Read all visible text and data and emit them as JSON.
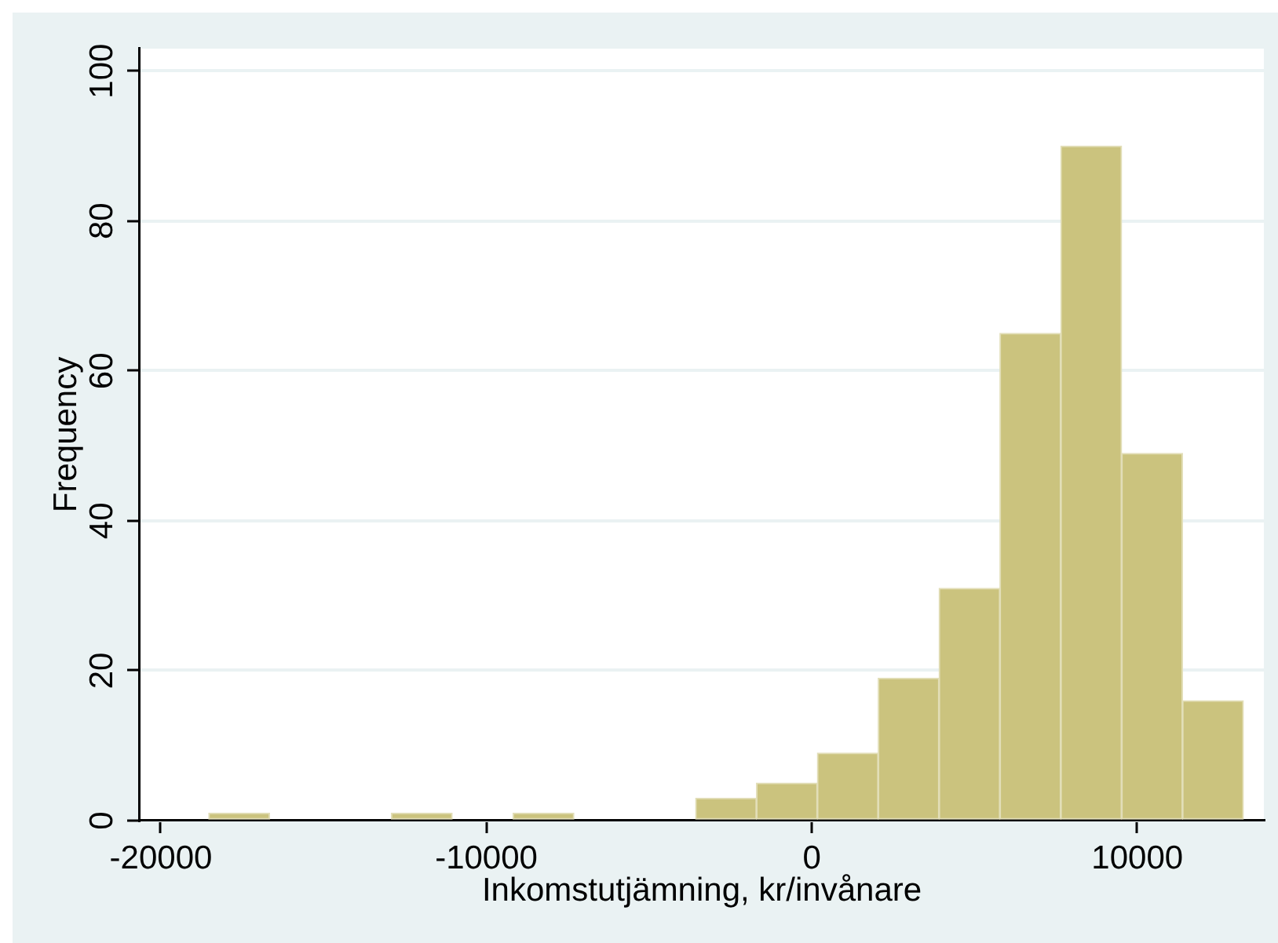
{
  "chart_data": {
    "type": "histogram",
    "xlabel": "Inkomstutjämning, kr/invånare",
    "ylabel": "Frequency",
    "bins": [
      -18530,
      -16660,
      -14790,
      -12920,
      -11050,
      -9180,
      -7310,
      -5440,
      -3570,
      -1700,
      170,
      2040,
      3910,
      5780,
      7650,
      9520,
      11390,
      13260
    ],
    "values": [
      1,
      0,
      0,
      1,
      0,
      1,
      0,
      0,
      3,
      5,
      9,
      19,
      31,
      65,
      90,
      49,
      16
    ],
    "color": "#cbc37e",
    "xlim": [
      -20650,
      13890
    ],
    "xticks": [
      -20000,
      -10000,
      0,
      10000
    ],
    "ylim": [
      0,
      103
    ],
    "yticks": [
      0,
      20,
      40,
      60,
      80,
      100
    ],
    "grid": "y"
  }
}
